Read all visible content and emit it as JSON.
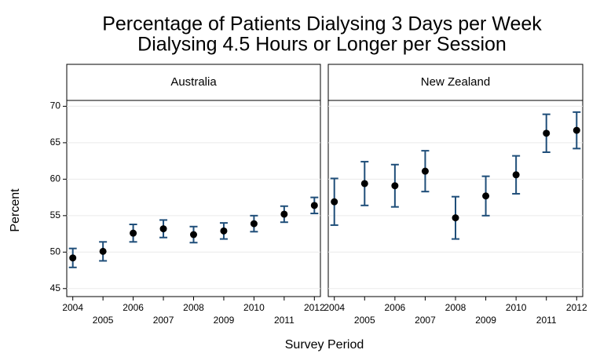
{
  "title": [
    "Percentage of Patients Dialysing 3 Days per Week",
    "Dialysing 4.5 Hours or Longer per Session"
  ],
  "y_label": "Percent",
  "x_label": "Survey Period",
  "chart_data": [
    {
      "type": "errorbar",
      "title": "Australia",
      "x": [
        2004,
        2005,
        2006,
        2007,
        2008,
        2009,
        2010,
        2011,
        2012
      ],
      "xlim": [
        2003.8,
        2012.2
      ],
      "xticks": [
        2004,
        2005,
        2006,
        2007,
        2008,
        2009,
        2010,
        2011,
        2012
      ],
      "ylim": [
        43.9,
        70.8
      ],
      "yticks": [
        45,
        50,
        55,
        60,
        65,
        70
      ],
      "grid": true,
      "series": [
        {
          "color": "#1f4e79",
          "values": [
            49.2,
            50.1,
            52.6,
            53.2,
            52.4,
            52.9,
            53.9,
            55.2,
            56.4
          ],
          "errors": [
            1.3,
            1.3,
            1.2,
            1.2,
            1.1,
            1.1,
            1.1,
            1.1,
            1.1
          ]
        }
      ]
    },
    {
      "type": "errorbar",
      "title": "New Zealand",
      "x": [
        2004,
        2005,
        2006,
        2007,
        2008,
        2009,
        2010,
        2011,
        2012
      ],
      "xlim": [
        2003.8,
        2012.2
      ],
      "xticks": [
        2004,
        2005,
        2006,
        2007,
        2008,
        2009,
        2010,
        2011,
        2012
      ],
      "ylim": [
        43.9,
        70.8
      ],
      "yticks": [
        45,
        50,
        55,
        60,
        65,
        70
      ],
      "grid": true,
      "series": [
        {
          "color": "#1f4e79",
          "values": [
            56.9,
            59.4,
            59.1,
            61.1,
            54.7,
            57.7,
            60.6,
            66.3,
            66.7
          ],
          "errors": [
            3.2,
            3.0,
            2.9,
            2.8,
            2.9,
            2.7,
            2.6,
            2.6,
            2.5
          ]
        }
      ]
    }
  ]
}
